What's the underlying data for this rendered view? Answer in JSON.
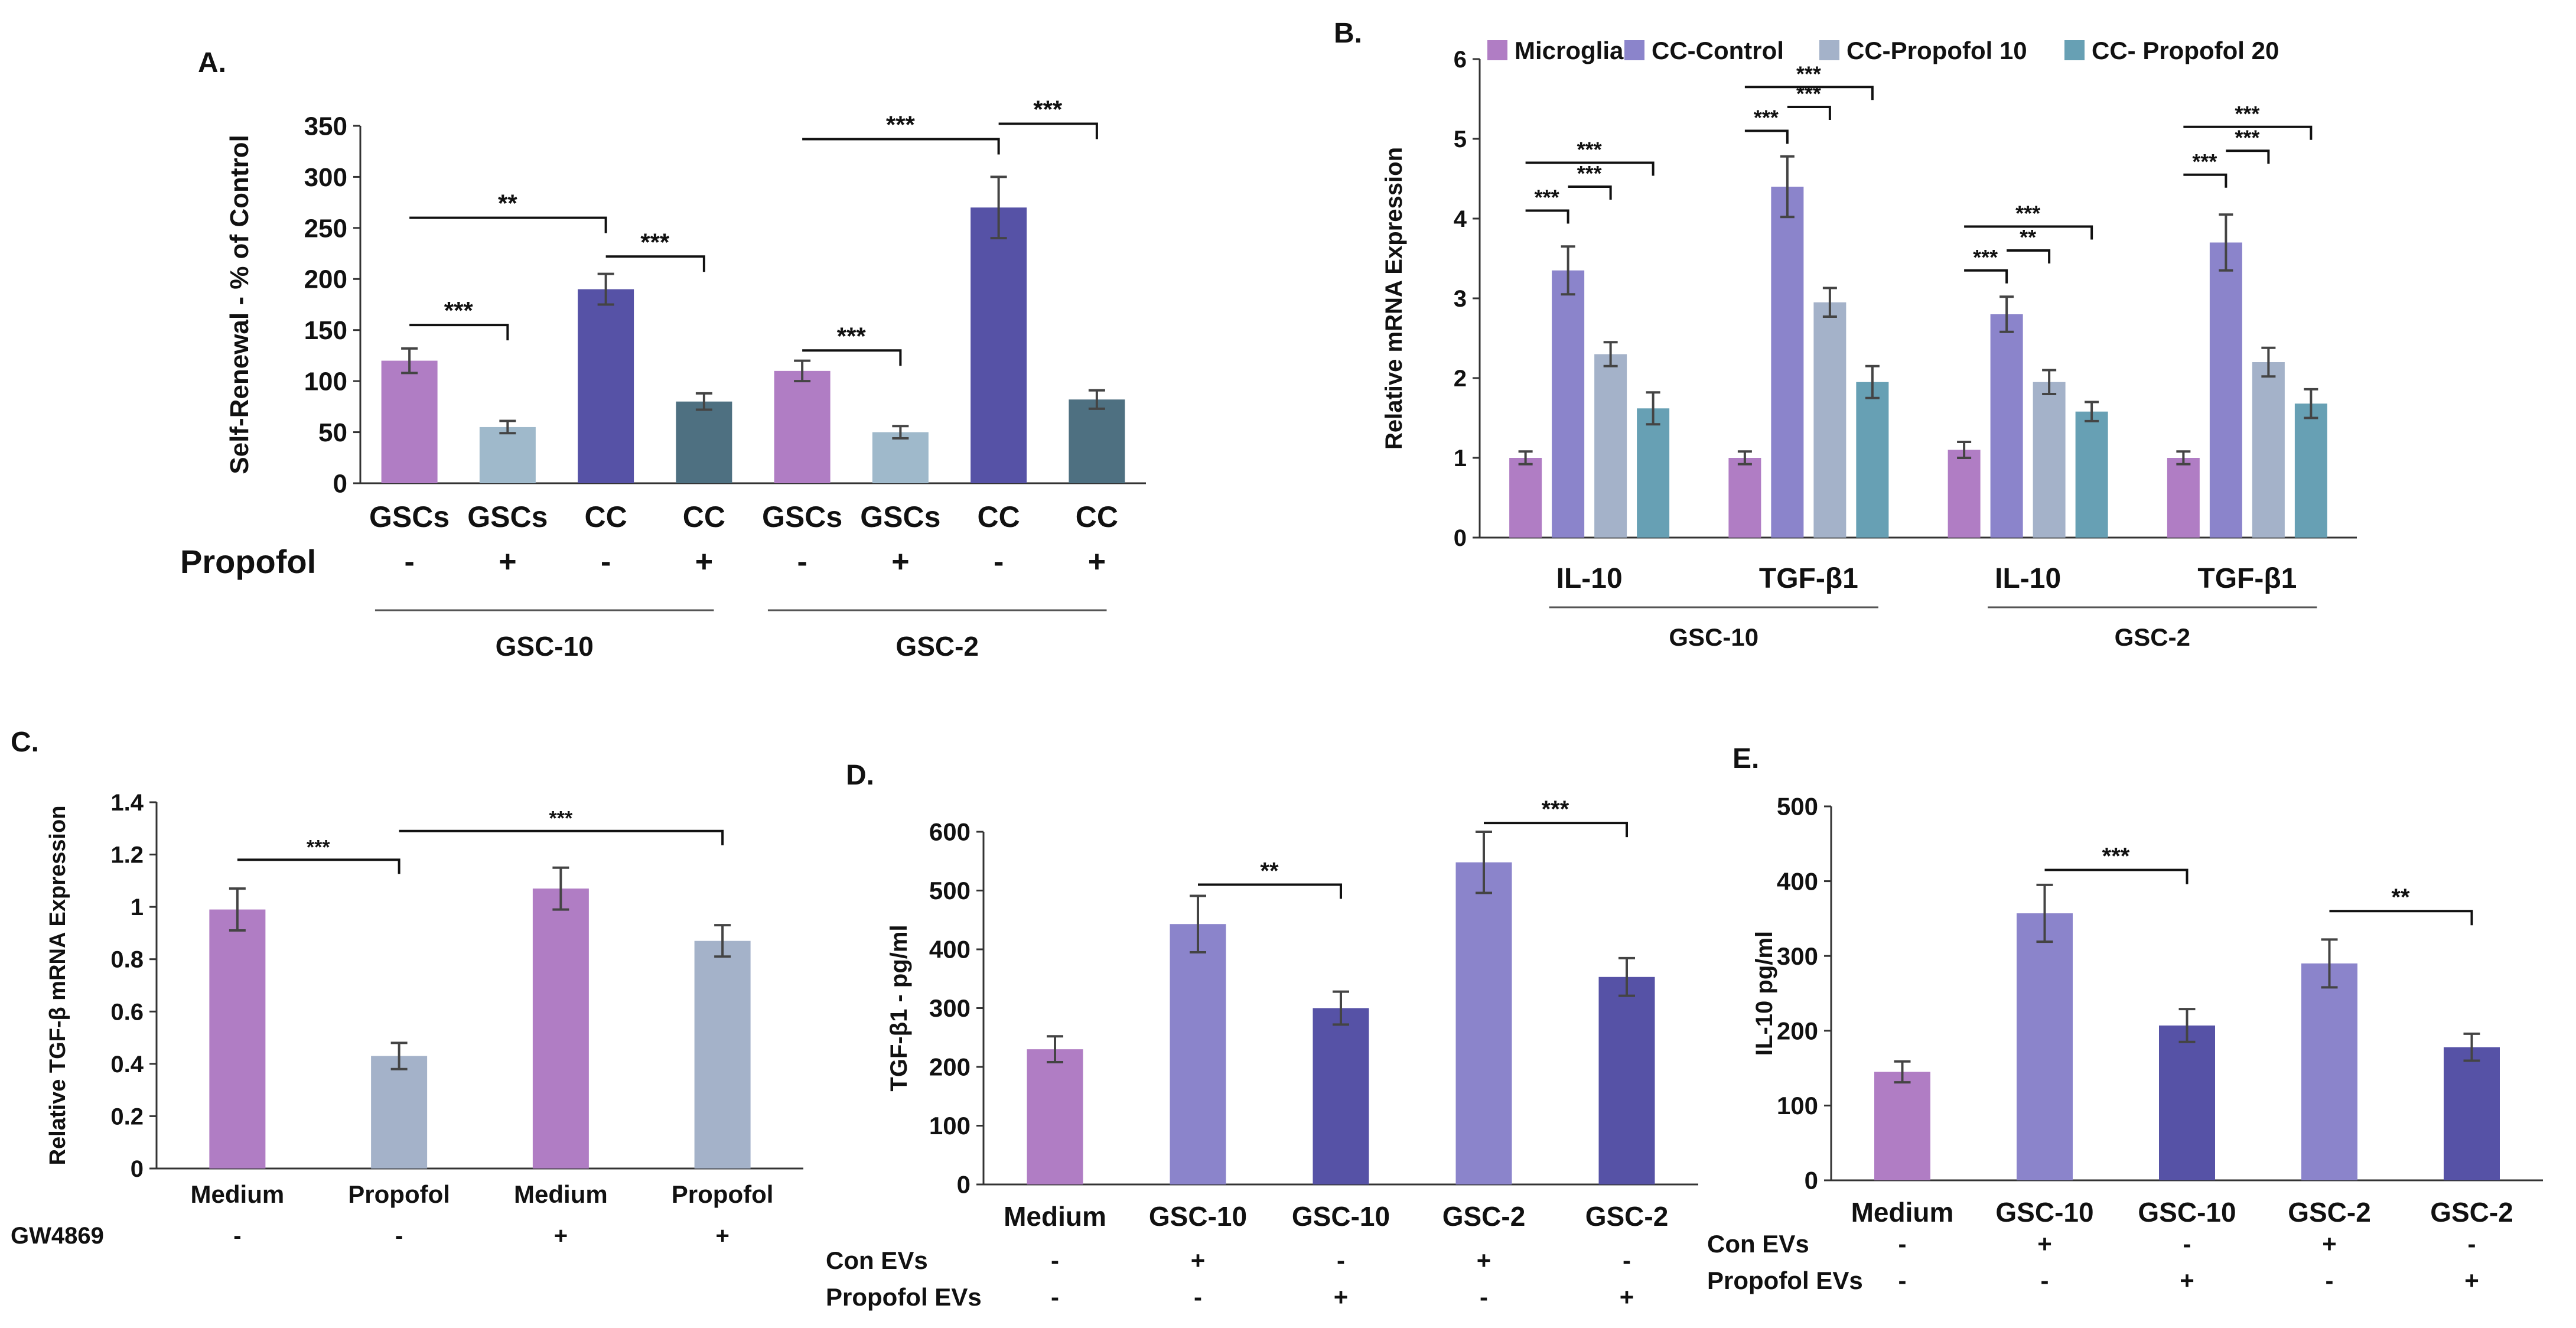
{
  "colors": {
    "pink": "#b07dc4",
    "purple": "#8b84cb",
    "darkpurple": "#5652a6",
    "lightblue": "#9fb9cb",
    "slate": "#a4b2c9",
    "teal": "#67a0b4",
    "darkslate": "#4e7081",
    "axis": "#333333",
    "err": "#444444"
  },
  "chart_data": [
    {
      "id": "A",
      "type": "bar",
      "panel_label": "A.",
      "ylabel": "Self-Renewal - % of Control",
      "ylim": [
        0,
        350
      ],
      "yticks": [
        "0",
        "50",
        "100",
        "150",
        "200",
        "250",
        "300",
        "350"
      ],
      "categories": [
        "GSCs",
        "GSCs",
        "CC",
        "CC",
        "GSCs",
        "GSCs",
        "CC",
        "CC"
      ],
      "values": [
        120,
        55,
        190,
        80,
        110,
        50,
        270,
        82
      ],
      "errors": [
        12,
        6,
        15,
        8,
        10,
        6,
        30,
        9
      ],
      "bar_colors": [
        "pink",
        "lightblue",
        "darkpurple",
        "darkslate",
        "pink",
        "lightblue",
        "darkpurple",
        "darkslate"
      ],
      "row_label": "Propofol",
      "row_signs": [
        "-",
        "+",
        "-",
        "+",
        "-",
        "+",
        "-",
        "+"
      ],
      "groups": [
        {
          "label": "GSC-10",
          "from": 0,
          "to": 3
        },
        {
          "label": "GSC-2",
          "from": 4,
          "to": 7
        }
      ],
      "significance": [
        {
          "from": 0,
          "to": 1,
          "y": 155,
          "label": "***"
        },
        {
          "from": 0,
          "to": 2,
          "y": 260,
          "label": "**"
        },
        {
          "from": 2,
          "to": 3,
          "y": 222,
          "label": "***"
        },
        {
          "from": 4,
          "to": 5,
          "y": 130,
          "label": "***"
        },
        {
          "from": 4,
          "to": 6,
          "y": 337,
          "label": "***"
        },
        {
          "from": 6,
          "to": 7,
          "y": 352,
          "label": "***"
        }
      ]
    },
    {
      "id": "B",
      "type": "bar",
      "panel_label": "B.",
      "ylabel": "Relative mRNA Expression",
      "ylim": [
        0,
        6
      ],
      "yticks": [
        "0",
        "1",
        "2",
        "3",
        "4",
        "5",
        "6"
      ],
      "categories": [
        "IL-10",
        "TGF-β1",
        "IL-10",
        "TGF-β1"
      ],
      "series": [
        {
          "name": "Microglia",
          "color": "pink",
          "values": [
            1.0,
            1.0,
            1.1,
            1.0
          ],
          "errors": [
            0.08,
            0.08,
            0.1,
            0.08
          ]
        },
        {
          "name": "CC-Control",
          "color": "purple",
          "values": [
            3.35,
            4.4,
            2.8,
            3.7
          ],
          "errors": [
            0.3,
            0.38,
            0.22,
            0.35
          ]
        },
        {
          "name": "CC-Propofol 10",
          "color": "slate",
          "values": [
            2.3,
            2.95,
            1.95,
            2.2
          ],
          "errors": [
            0.15,
            0.18,
            0.15,
            0.18
          ]
        },
        {
          "name": "CC- Propofol 20",
          "color": "teal",
          "values": [
            1.62,
            1.95,
            1.58,
            1.68
          ],
          "errors": [
            0.2,
            0.2,
            0.12,
            0.18
          ]
        }
      ],
      "groups": [
        {
          "label": "GSC-10",
          "from": 0,
          "to": 1
        },
        {
          "label": "GSC-2",
          "from": 2,
          "to": 3
        }
      ],
      "significance": [
        {
          "cat": 0,
          "from": 0,
          "to": 1,
          "y": 4.1,
          "label": "***"
        },
        {
          "cat": 0,
          "from": 1,
          "to": 2,
          "y": 4.4,
          "label": "***"
        },
        {
          "cat": 0,
          "from": 0,
          "to": 3,
          "y": 4.7,
          "label": "***"
        },
        {
          "cat": 1,
          "from": 0,
          "to": 1,
          "y": 5.1,
          "label": "***"
        },
        {
          "cat": 1,
          "from": 1,
          "to": 2,
          "y": 5.4,
          "label": "***"
        },
        {
          "cat": 1,
          "from": 0,
          "to": 3,
          "y": 5.65,
          "label": "***"
        },
        {
          "cat": 2,
          "from": 0,
          "to": 1,
          "y": 3.35,
          "label": "***"
        },
        {
          "cat": 2,
          "from": 1,
          "to": 2,
          "y": 3.6,
          "label": "**"
        },
        {
          "cat": 2,
          "from": 0,
          "to": 3,
          "y": 3.9,
          "label": "***"
        },
        {
          "cat": 3,
          "from": 0,
          "to": 1,
          "y": 4.55,
          "label": "***"
        },
        {
          "cat": 3,
          "from": 1,
          "to": 2,
          "y": 4.85,
          "label": "***"
        },
        {
          "cat": 3,
          "from": 0,
          "to": 3,
          "y": 5.15,
          "label": "***"
        }
      ]
    },
    {
      "id": "C",
      "type": "bar",
      "panel_label": "C.",
      "ylabel": "Relative TGF-β mRNA Expression",
      "ylim": [
        0,
        1.4
      ],
      "yticks": [
        "0",
        "0.2",
        "0.4",
        "0.6",
        "0.8",
        "1",
        "1.2",
        "1.4"
      ],
      "categories": [
        "Medium",
        "Propofol",
        "Medium",
        "Propofol"
      ],
      "values": [
        0.99,
        0.43,
        1.07,
        0.87
      ],
      "errors": [
        0.08,
        0.05,
        0.08,
        0.06
      ],
      "bar_colors": [
        "pink",
        "slate",
        "pink",
        "slate"
      ],
      "row_label": "GW4869",
      "row_signs": [
        "-",
        "-",
        "+",
        "+"
      ],
      "significance": [
        {
          "from": 0,
          "to": 1,
          "y": 1.18,
          "label": "***"
        },
        {
          "from": 1,
          "to": 3,
          "y": 1.29,
          "label": "***"
        }
      ]
    },
    {
      "id": "D",
      "type": "bar",
      "panel_label": "D.",
      "ylabel": "TGF-β1 - pg/ml",
      "ylim": [
        0,
        600
      ],
      "yticks": [
        "0",
        "100",
        "200",
        "300",
        "400",
        "500",
        "600"
      ],
      "categories": [
        "Medium",
        "GSC-10",
        "GSC-10",
        "GSC-2",
        "GSC-2"
      ],
      "values": [
        230,
        443,
        300,
        548,
        353
      ],
      "errors": [
        22,
        48,
        28,
        52,
        32
      ],
      "bar_colors": [
        "pink",
        "purple",
        "darkpurple",
        "purple",
        "darkpurple"
      ],
      "rows": [
        {
          "label": "Con EVs",
          "signs": [
            "-",
            "+",
            "-",
            "+",
            "-"
          ]
        },
        {
          "label": "Propofol EVs",
          "signs": [
            "-",
            "-",
            "+",
            "-",
            "+"
          ]
        }
      ],
      "significance": [
        {
          "from": 1,
          "to": 2,
          "y": 510,
          "label": "**"
        },
        {
          "from": 3,
          "to": 4,
          "y": 615,
          "label": "***"
        }
      ]
    },
    {
      "id": "E",
      "type": "bar",
      "panel_label": "E.",
      "ylabel": "IL-10  pg/ml",
      "ylim": [
        0,
        500
      ],
      "yticks": [
        "0",
        "100",
        "200",
        "300",
        "400",
        "500"
      ],
      "categories": [
        "Medium",
        "GSC-10",
        "GSC-10",
        "GSC-2",
        "GSC-2"
      ],
      "values": [
        145,
        357,
        207,
        290,
        178
      ],
      "errors": [
        14,
        38,
        22,
        32,
        18
      ],
      "bar_colors": [
        "pink",
        "purple",
        "darkpurple",
        "purple",
        "darkpurple"
      ],
      "rows": [
        {
          "label": "Con EVs",
          "signs": [
            "-",
            "+",
            "-",
            "+",
            "-"
          ]
        },
        {
          "label": "Propofol EVs",
          "signs": [
            "-",
            "-",
            "+",
            "-",
            "+"
          ]
        }
      ],
      "significance": [
        {
          "from": 1,
          "to": 2,
          "y": 415,
          "label": "***"
        },
        {
          "from": 3,
          "to": 4,
          "y": 360,
          "label": "**"
        }
      ]
    }
  ]
}
